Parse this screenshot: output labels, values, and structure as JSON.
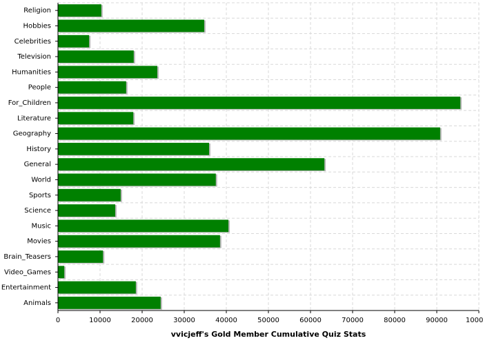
{
  "chart_data": {
    "type": "barh",
    "title": "vvicjeff's Gold Member Cumulative Quiz Stats",
    "categories": [
      "Religion",
      "Hobbies",
      "Celebrities",
      "Television",
      "Humanities",
      "People",
      "For_Children",
      "Literature",
      "Geography",
      "History",
      "General",
      "World",
      "Sports",
      "Science",
      "Music",
      "Movies",
      "Brain_Teasers",
      "Video_Games",
      "Entertainment",
      "Animals"
    ],
    "values": [
      10300,
      34750,
      7400,
      18000,
      23600,
      16200,
      95600,
      17900,
      90800,
      35900,
      63300,
      37500,
      14900,
      13600,
      40500,
      38500,
      10700,
      1500,
      18500,
      24400
    ],
    "color": "#008000",
    "xlim": [
      0,
      100000
    ],
    "xticks": [
      0,
      10000,
      20000,
      30000,
      40000,
      50000,
      60000,
      70000,
      80000,
      90000,
      100000
    ],
    "grid": true
  }
}
